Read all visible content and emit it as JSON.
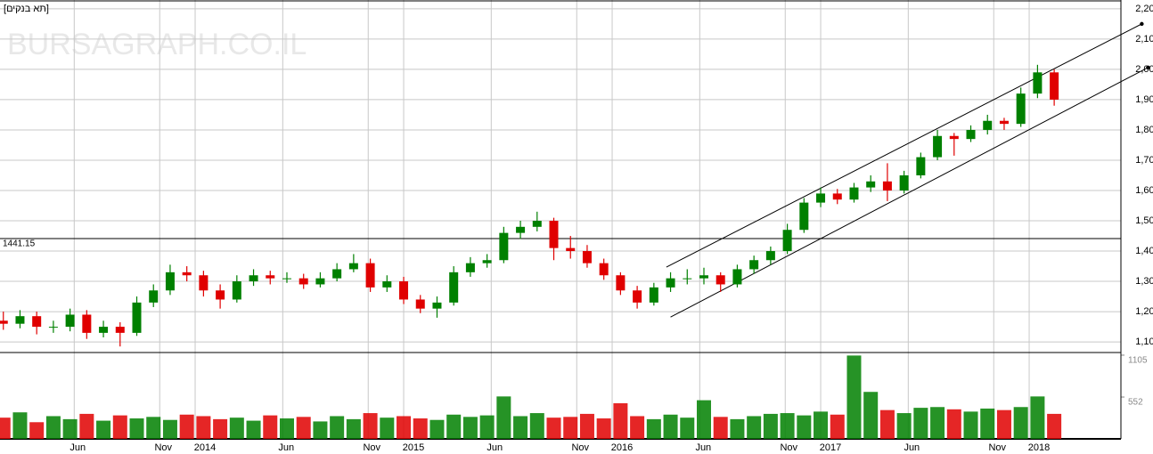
{
  "chart_data": {
    "type": "candlestick",
    "title": "[תא בנקים]",
    "watermark": "BURSAGRAPH.CO.IL",
    "x": [
      2013.08,
      2013.16,
      2013.24,
      2013.32,
      2013.4,
      2013.48,
      2013.56,
      2013.64,
      2013.72,
      2013.8,
      2013.88,
      2013.96,
      2014.04,
      2014.12,
      2014.2,
      2014.28,
      2014.36,
      2014.44,
      2014.52,
      2014.6,
      2014.68,
      2014.76,
      2014.84,
      2014.92,
      2015.0,
      2015.08,
      2015.16,
      2015.24,
      2015.32,
      2015.4,
      2015.48,
      2015.56,
      2015.64,
      2015.72,
      2015.8,
      2015.88,
      2015.96,
      2016.04,
      2016.12,
      2016.2,
      2016.28,
      2016.36,
      2016.44,
      2016.52,
      2016.6,
      2016.68,
      2016.76,
      2016.84,
      2016.92,
      2017.0,
      2017.08,
      2017.16,
      2017.24,
      2017.32,
      2017.4,
      2017.48,
      2017.56,
      2017.64,
      2017.72,
      2017.8,
      2017.88,
      2017.96,
      2018.04,
      2018.12
    ],
    "open": [
      1170,
      1160,
      1185,
      1150,
      1150,
      1190,
      1130,
      1150,
      1130,
      1230,
      1270,
      1330,
      1320,
      1270,
      1240,
      1300,
      1320,
      1310,
      1310,
      1290,
      1310,
      1340,
      1360,
      1280,
      1300,
      1240,
      1210,
      1230,
      1330,
      1360,
      1370,
      1460,
      1480,
      1500,
      1410,
      1400,
      1360,
      1320,
      1270,
      1230,
      1280,
      1310,
      1310,
      1320,
      1290,
      1340,
      1370,
      1400,
      1470,
      1560,
      1590,
      1570,
      1610,
      1630,
      1600,
      1650,
      1710,
      1780,
      1770,
      1800,
      1830,
      1820,
      1920,
      1990
    ],
    "high": [
      1200,
      1205,
      1200,
      1170,
      1210,
      1205,
      1170,
      1165,
      1250,
      1290,
      1355,
      1350,
      1335,
      1290,
      1320,
      1340,
      1335,
      1330,
      1325,
      1330,
      1360,
      1390,
      1375,
      1320,
      1315,
      1255,
      1250,
      1350,
      1380,
      1390,
      1480,
      1500,
      1530,
      1510,
      1450,
      1420,
      1375,
      1330,
      1285,
      1295,
      1330,
      1340,
      1345,
      1330,
      1355,
      1385,
      1415,
      1490,
      1575,
      1610,
      1605,
      1625,
      1650,
      1690,
      1665,
      1725,
      1800,
      1790,
      1815,
      1850,
      1840,
      1940,
      2015,
      2000
    ],
    "low": [
      1140,
      1145,
      1125,
      1130,
      1135,
      1110,
      1115,
      1085,
      1120,
      1215,
      1255,
      1300,
      1250,
      1210,
      1230,
      1285,
      1290,
      1295,
      1275,
      1280,
      1300,
      1330,
      1265,
      1265,
      1225,
      1195,
      1180,
      1220,
      1315,
      1345,
      1360,
      1440,
      1465,
      1370,
      1375,
      1345,
      1305,
      1255,
      1210,
      1220,
      1265,
      1290,
      1290,
      1265,
      1280,
      1325,
      1355,
      1390,
      1460,
      1545,
      1555,
      1560,
      1595,
      1565,
      1590,
      1640,
      1700,
      1715,
      1760,
      1785,
      1800,
      1810,
      1905,
      1880
    ],
    "close": [
      1160,
      1185,
      1150,
      1150,
      1190,
      1130,
      1150,
      1130,
      1230,
      1270,
      1330,
      1320,
      1270,
      1240,
      1300,
      1320,
      1310,
      1310,
      1290,
      1310,
      1340,
      1360,
      1280,
      1300,
      1240,
      1210,
      1230,
      1330,
      1360,
      1370,
      1460,
      1480,
      1500,
      1410,
      1400,
      1360,
      1320,
      1270,
      1230,
      1280,
      1310,
      1310,
      1320,
      1290,
      1340,
      1370,
      1400,
      1470,
      1560,
      1590,
      1570,
      1610,
      1630,
      1600,
      1650,
      1710,
      1780,
      1770,
      1800,
      1830,
      1820,
      1920,
      1990,
      1900
    ],
    "volume": [
      280,
      350,
      220,
      300,
      260,
      330,
      240,
      310,
      270,
      290,
      250,
      320,
      300,
      260,
      280,
      240,
      310,
      270,
      290,
      230,
      300,
      260,
      340,
      280,
      300,
      270,
      250,
      320,
      290,
      310,
      560,
      300,
      340,
      280,
      290,
      330,
      270,
      470,
      300,
      260,
      320,
      280,
      510,
      290,
      260,
      300,
      330,
      340,
      310,
      360,
      320,
      1100,
      620,
      380,
      340,
      410,
      420,
      390,
      360,
      400,
      380,
      420,
      560,
      330
    ],
    "up_color": "#008000",
    "down_color": "#e00000",
    "xlim": [
      2013.064,
      2018.44
    ],
    "ylim": [
      1065,
      2229
    ],
    "y2lim": [
      0,
      1128
    ],
    "xticks": [
      {
        "value": 2013.42,
        "label": "Jun"
      },
      {
        "value": 2013.83,
        "label": "Nov"
      },
      2014,
      {
        "value": 2014.42,
        "label": "Jun"
      },
      {
        "value": 2014.83,
        "label": "Nov"
      },
      2015,
      {
        "value": 2015.42,
        "label": "Jun"
      },
      {
        "value": 2015.83,
        "label": "Nov"
      },
      2016,
      {
        "value": 2016.42,
        "label": "Jun"
      },
      {
        "value": 2016.83,
        "label": "Nov"
      },
      2017,
      {
        "value": 2017.42,
        "label": "Jun"
      },
      {
        "value": 2017.83,
        "label": "Nov"
      },
      2018
    ],
    "yticks": [
      {
        "value": 1100,
        "label": "1,100"
      },
      {
        "value": 1200,
        "label": "1,200"
      },
      {
        "value": 1300,
        "label": "1,300"
      },
      {
        "value": 1400,
        "label": "1,400"
      },
      {
        "value": 1500,
        "label": "1,500"
      },
      {
        "value": 1600,
        "label": "1,600"
      },
      {
        "value": 1700,
        "label": "1,700"
      },
      {
        "value": 1800,
        "label": "1,800"
      },
      {
        "value": 1900,
        "label": "1,900"
      },
      {
        "value": 2000,
        "label": "2,000"
      },
      {
        "value": 2100,
        "label": "2,100"
      },
      {
        "value": 2200,
        "label": "2,200"
      }
    ],
    "y2ticks": [
      552,
      1105
    ],
    "reference_line": 1441.15,
    "channel": [
      {
        "x": [
          2016.26,
          2018.54
        ],
        "y": [
          1347,
          2150
        ]
      },
      {
        "x": [
          2016.28,
          2018.57
        ],
        "y": [
          1182,
          2006
        ]
      }
    ],
    "grid": true
  }
}
